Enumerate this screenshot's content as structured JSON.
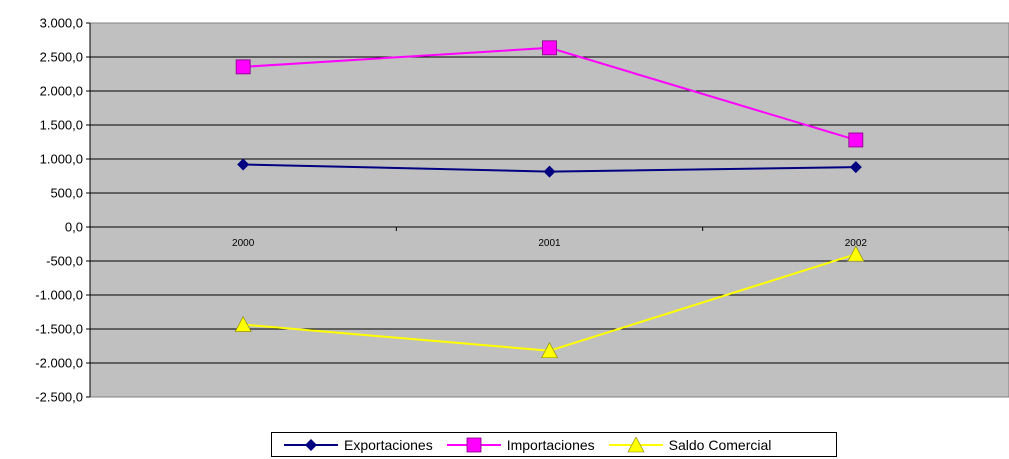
{
  "chart_data": {
    "type": "line",
    "categories": [
      "2000",
      "2001",
      "2002"
    ],
    "series": [
      {
        "name": "Exportaciones",
        "values": [
          920,
          815,
          880
        ],
        "color": "#000080",
        "marker": "diamond"
      },
      {
        "name": "Importaciones",
        "values": [
          2355,
          2635,
          1280
        ],
        "color": "#ff00ff",
        "marker": "square"
      },
      {
        "name": "Saldo Comercial",
        "values": [
          -1435,
          -1820,
          -400
        ],
        "color": "#ffff00",
        "marker": "triangle"
      }
    ],
    "ylim": [
      -2500,
      3000
    ],
    "yticks": [
      3000,
      2500,
      2000,
      1500,
      1000,
      500,
      0,
      -500,
      -1000,
      -1500,
      -2000,
      -2500
    ],
    "ytick_labels": [
      "3.000,0",
      "2.500,0",
      "2.000,0",
      "1.500,0",
      "1.000,0",
      "500,0",
      "0,0",
      "-500,0",
      "-1.000,0",
      "-1.500,0",
      "-2.000,0",
      "-2.500,0"
    ],
    "plot_background": "#c0c0c0",
    "grid": true,
    "legend_position": "bottom"
  }
}
